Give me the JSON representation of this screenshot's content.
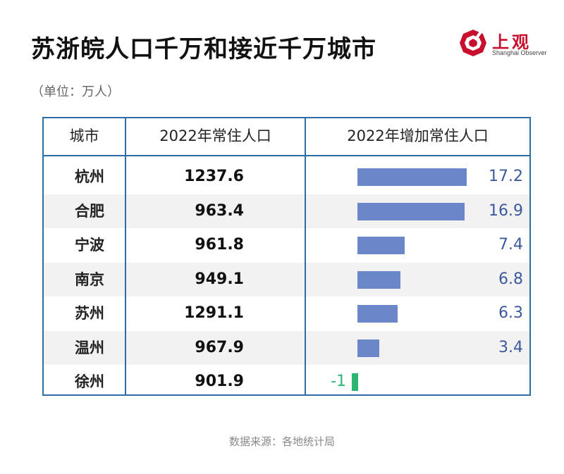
{
  "title": "苏浙皖人口千万和接近千万城市",
  "unit": "（单位：万人）",
  "logo": {
    "cn": "上观",
    "en": "Shanghai Observer",
    "brand_color": "#c8102e"
  },
  "source": "数据来源：各地统计局",
  "colors": {
    "border": "#2b6ea6",
    "positive_bar": "#6b86c9",
    "negative_bar": "#2bb673",
    "positive_text": "#3d5a9e",
    "negative_text": "#2bb673"
  },
  "chart_data": {
    "type": "table",
    "columns": [
      "城市",
      "2022年常住人口",
      "2022年增加常住人口"
    ],
    "rows": [
      {
        "city": "杭州",
        "population": "1237.6",
        "increase": 17.2,
        "increase_label": "17.2"
      },
      {
        "city": "合肥",
        "population": "963.4",
        "increase": 16.9,
        "increase_label": "16.9"
      },
      {
        "city": "宁波",
        "population": "961.8",
        "increase": 7.4,
        "increase_label": "7.4"
      },
      {
        "city": "南京",
        "population": "949.1",
        "increase": 6.8,
        "increase_label": "6.8"
      },
      {
        "city": "苏州",
        "population": "1291.1",
        "increase": 6.3,
        "increase_label": "6.3"
      },
      {
        "city": "温州",
        "population": "967.9",
        "increase": 3.4,
        "increase_label": "3.4"
      },
      {
        "city": "徐州",
        "population": "901.9",
        "increase": -1,
        "increase_label": "-1"
      }
    ]
  }
}
